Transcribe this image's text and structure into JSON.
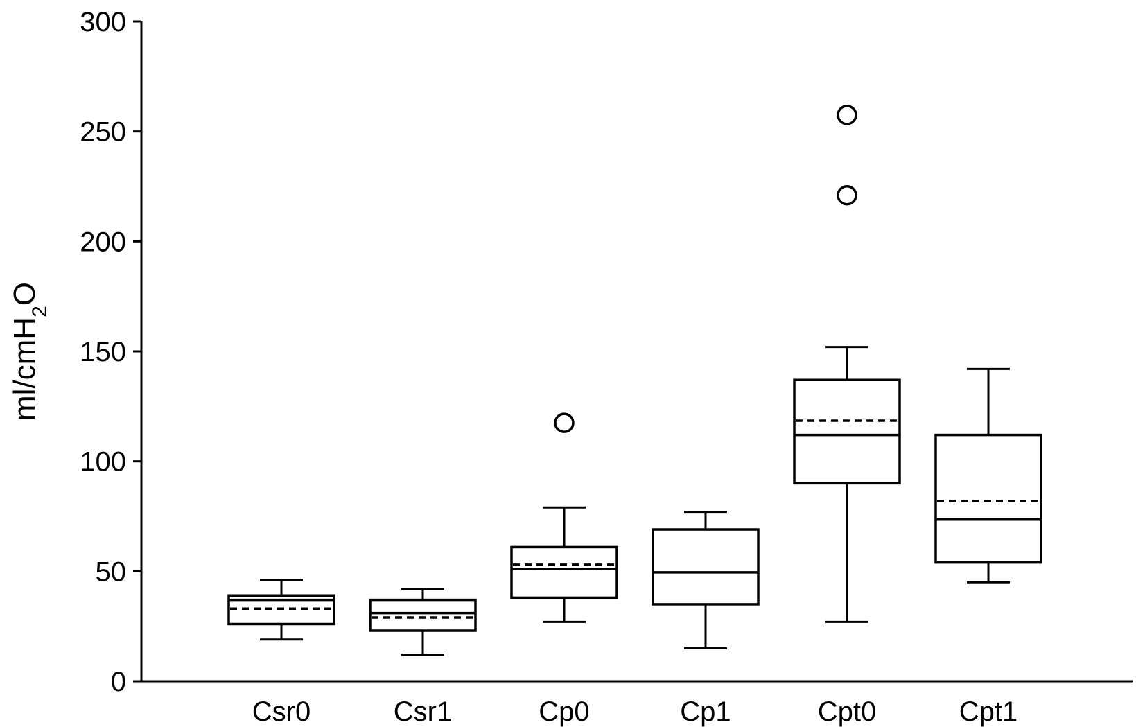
{
  "chart_data": {
    "type": "boxplot",
    "title": "",
    "xlabel": "",
    "ylabel": {
      "prefix": "ml/cmH",
      "subscript": "2",
      "suffix": "O"
    },
    "ylim": [
      0,
      300
    ],
    "yticks": [
      0,
      50,
      100,
      150,
      200,
      250,
      300
    ],
    "ytick_labels": [
      "0",
      "50",
      "100",
      "150",
      "200",
      "250",
      "300"
    ],
    "grid": false,
    "categories": [
      "Csr0",
      "Csr1",
      "Cp0",
      "Cp1",
      "Cpt0",
      "Cpt1"
    ],
    "boxes": [
      {
        "category": "Csr0",
        "whisker_low": 19,
        "q1": 26,
        "median": 37,
        "mean": 33,
        "q3": 39,
        "whisker_high": 46,
        "outliers": []
      },
      {
        "category": "Csr1",
        "whisker_low": 12,
        "q1": 23,
        "median": 31,
        "mean": 29,
        "q3": 37,
        "whisker_high": 42,
        "outliers": []
      },
      {
        "category": "Cp0",
        "whisker_low": 27,
        "q1": 38,
        "median": 51,
        "mean": 53,
        "q3": 61,
        "whisker_high": 79,
        "outliers": [
          117.5
        ]
      },
      {
        "category": "Cp1",
        "whisker_low": 15,
        "q1": 35,
        "median": 49.5,
        "mean": null,
        "q3": 69,
        "whisker_high": 77,
        "outliers": []
      },
      {
        "category": "Cpt0",
        "whisker_low": 27,
        "q1": 90,
        "median": 112,
        "mean": 118.5,
        "q3": 137,
        "whisker_high": 152,
        "outliers": [
          221,
          257.5
        ]
      },
      {
        "category": "Cpt1",
        "whisker_low": 45,
        "q1": 54,
        "median": 73.5,
        "mean": 82,
        "q3": 112,
        "whisker_high": 142,
        "outliers": []
      }
    ]
  }
}
